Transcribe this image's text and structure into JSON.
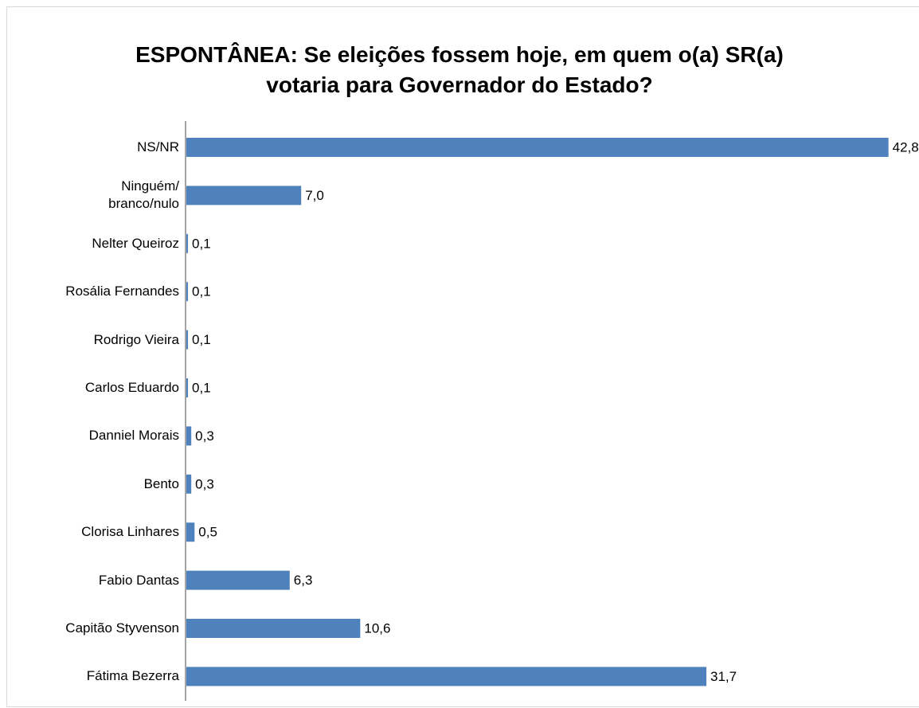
{
  "chart_data": {
    "type": "barh",
    "title": "ESPONTÂNEA: Se eleições fossem hoje, em quem o(a) SR(a) votaria para Governador do Estado?",
    "categories": [
      "NS/NR",
      "Ninguém/\nbranco/nulo",
      "Nelter Queiroz",
      "Rosália Fernandes",
      "Rodrigo Vieira",
      "Carlos Eduardo",
      "Danniel Morais",
      "Bento",
      "Clorisa Linhares",
      "Fabio Dantas",
      "Capitão Styvenson",
      "Fátima Bezerra"
    ],
    "values": [
      42.8,
      7.0,
      0.1,
      0.1,
      0.1,
      0.1,
      0.3,
      0.3,
      0.5,
      6.3,
      10.6,
      31.7
    ],
    "value_labels": [
      "42,8",
      "7,0",
      "0,1",
      "0,1",
      "0,1",
      "0,1",
      "0,3",
      "0,3",
      "0,5",
      "6,3",
      "10,6",
      "31,7"
    ],
    "color": "#4f81bd"
  }
}
